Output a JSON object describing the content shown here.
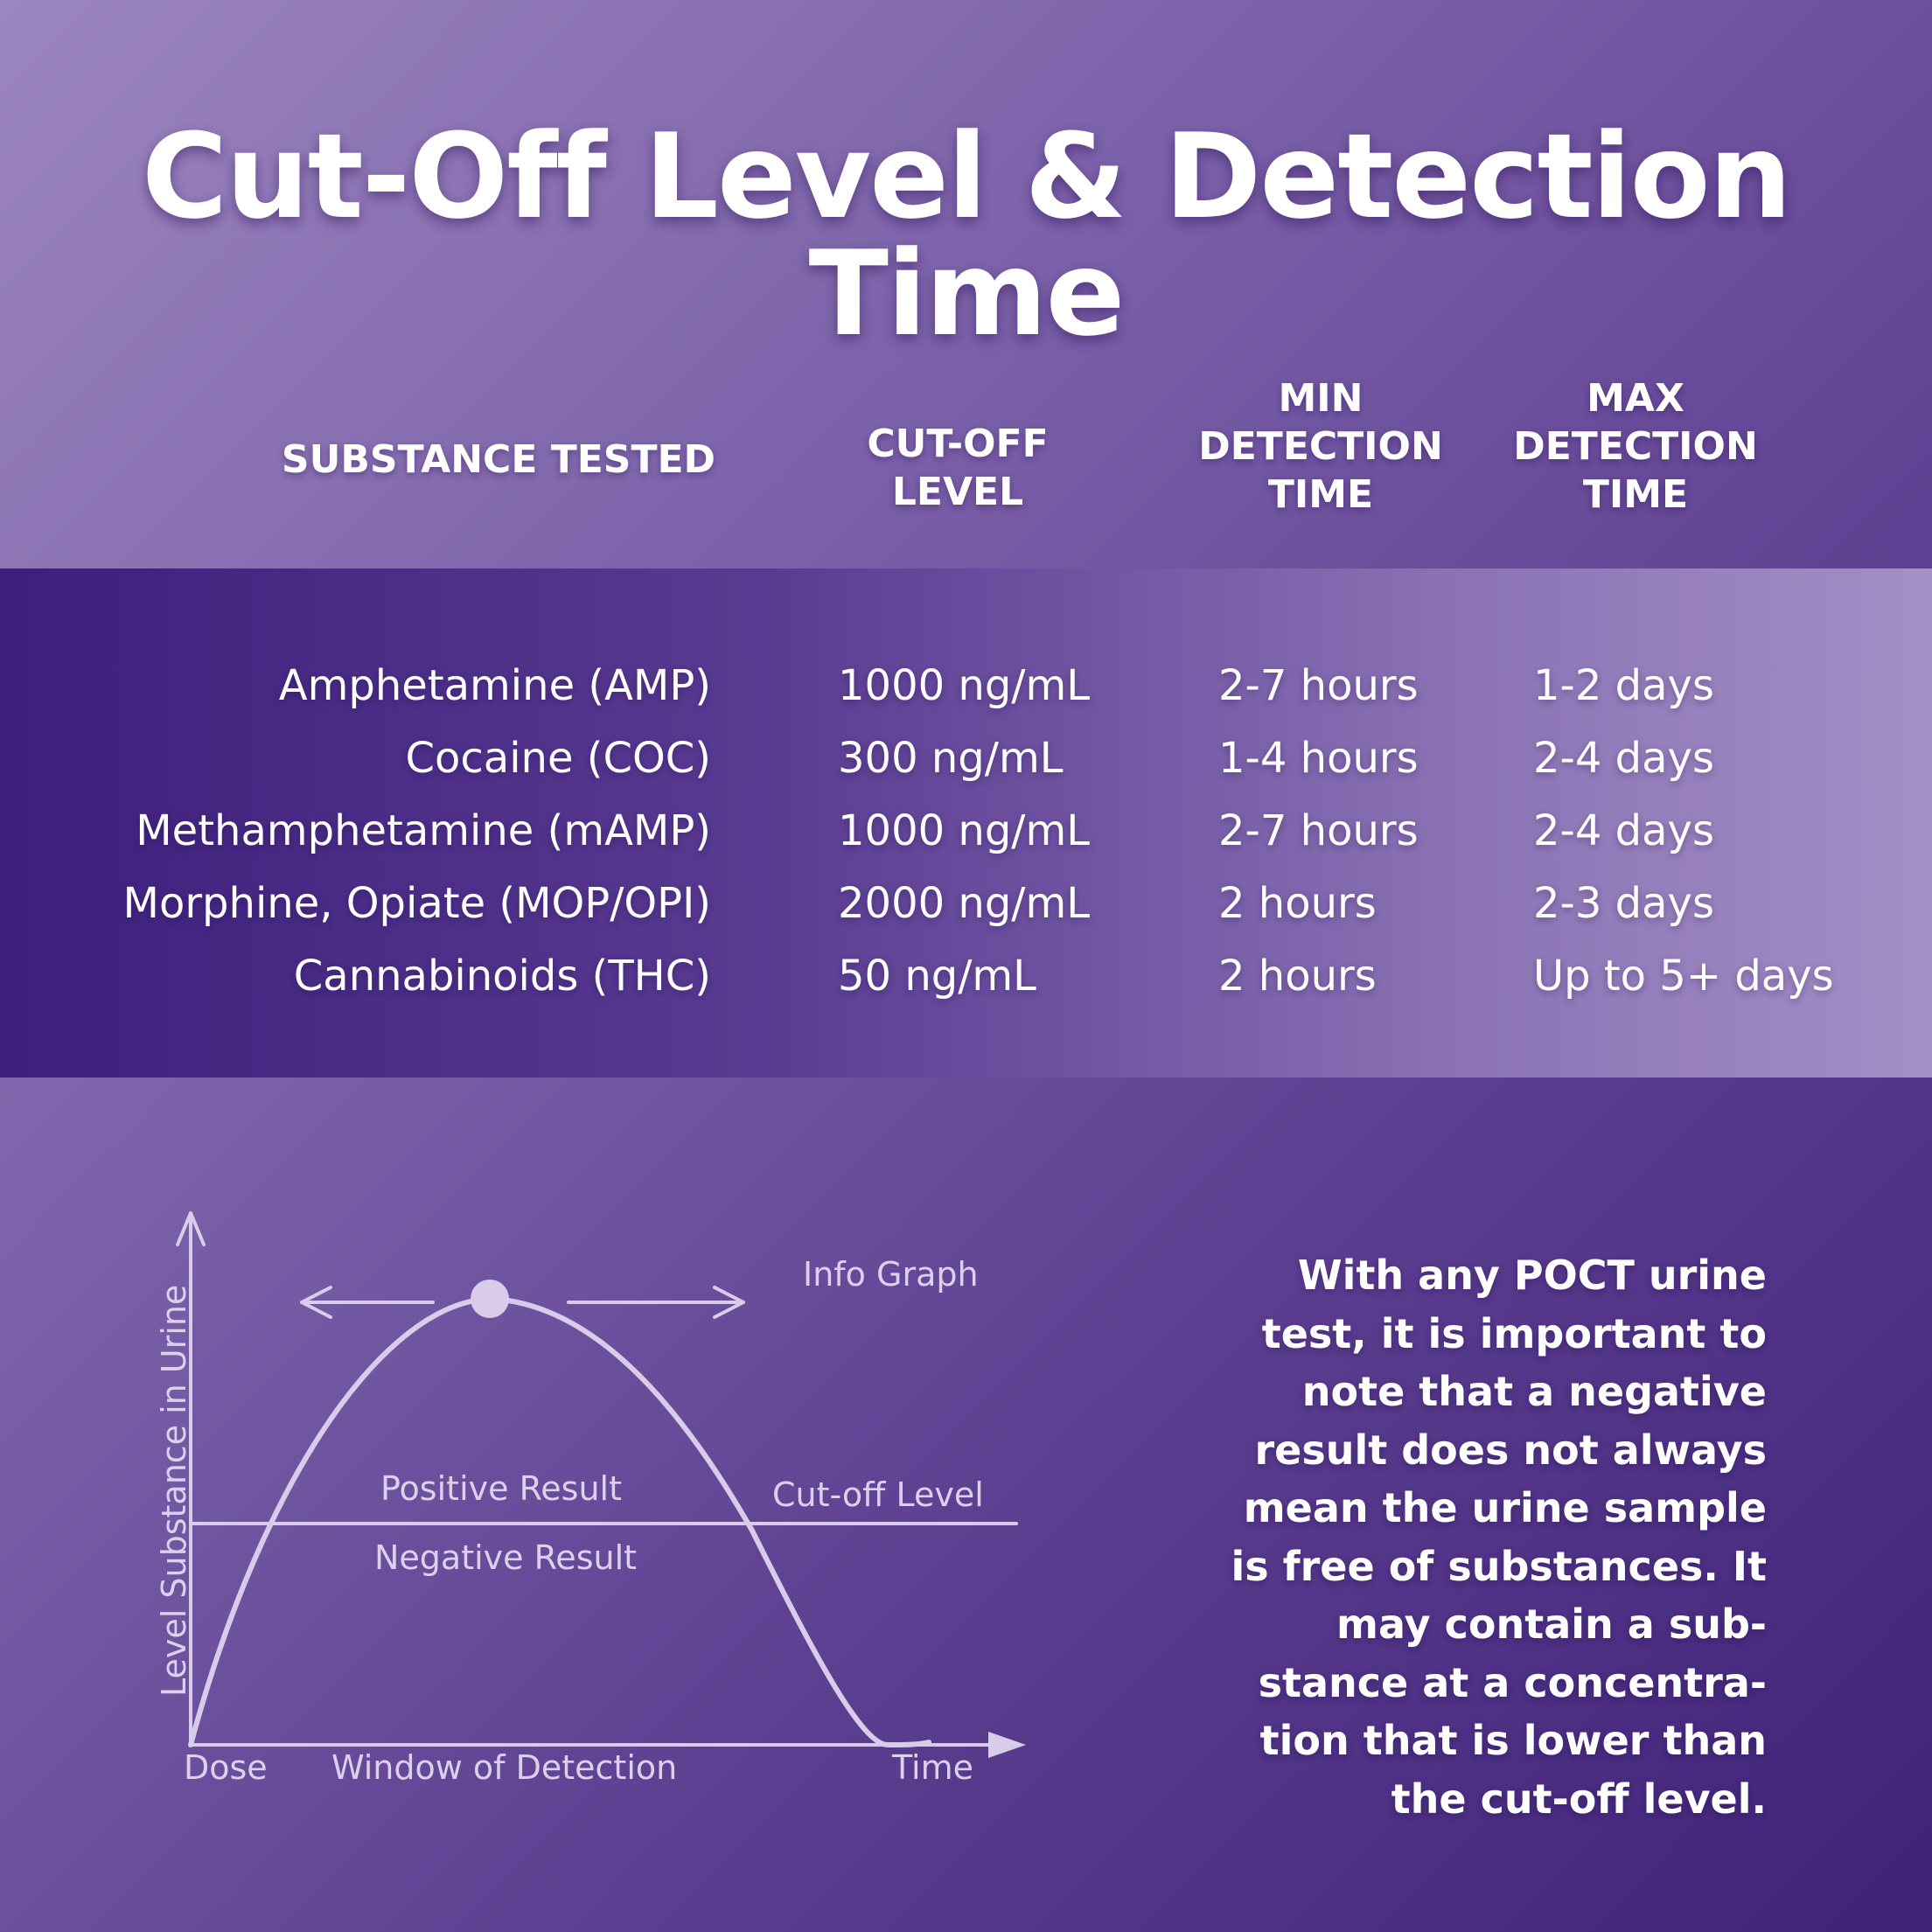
{
  "title": "Cut-Off Level & Detection Time",
  "table": {
    "headers": {
      "substance": "SUBSTANCE TESTED",
      "cutoff": [
        "CUT-OFF",
        "LEVEL"
      ],
      "min": [
        "MIN",
        "DETECTION",
        "TIME"
      ],
      "max": [
        "MAX",
        "DETECTION",
        "TIME"
      ]
    },
    "rows": [
      {
        "substance": "Amphetamine (AMP)",
        "cutoff": "1000 ng/mL",
        "min": "2-7 hours",
        "max": "1-2 days"
      },
      {
        "substance": "Cocaine (COC)",
        "cutoff": "300 ng/mL",
        "min": "1-4 hours",
        "max": "2-4 days"
      },
      {
        "substance": "Methamphetamine (mAMP)",
        "cutoff": "1000 ng/mL",
        "min": "2-7 hours",
        "max": "2-4 days"
      },
      {
        "substance": "Morphine, Opiate (MOP/OPI)",
        "cutoff": "2000 ng/mL",
        "min": "2 hours",
        "max": "2-3 days"
      },
      {
        "substance": "Cannabinoids (THC)",
        "cutoff": "50 ng/mL",
        "min": "2 hours",
        "max": "Up to 5+ days"
      }
    ]
  },
  "graph": {
    "info_label": "Info Graph",
    "y_axis_label": "Level Substance in Urine",
    "positive_label": "Positive Result",
    "negative_label": "Negative Result",
    "cutoff_label": "Cut-off Level",
    "dose_label": "Dose",
    "window_label": "Window of Detection",
    "time_label": "Time"
  },
  "note_lines": [
    "With any POCT urine",
    "test, it is important to",
    "note that a negative",
    "result does not always",
    "mean the urine sample",
    "is free of substances. It",
    "may contain a sub-",
    "stance at a concentra-",
    "tion that is lower than",
    "the cut-off level."
  ],
  "colors": {
    "background_light": "#9c86bf",
    "background_dark": "#3f2278",
    "band_left": "#3d1f7c",
    "band_right": "#a48fc6",
    "graph_line": "#d8ccea"
  }
}
